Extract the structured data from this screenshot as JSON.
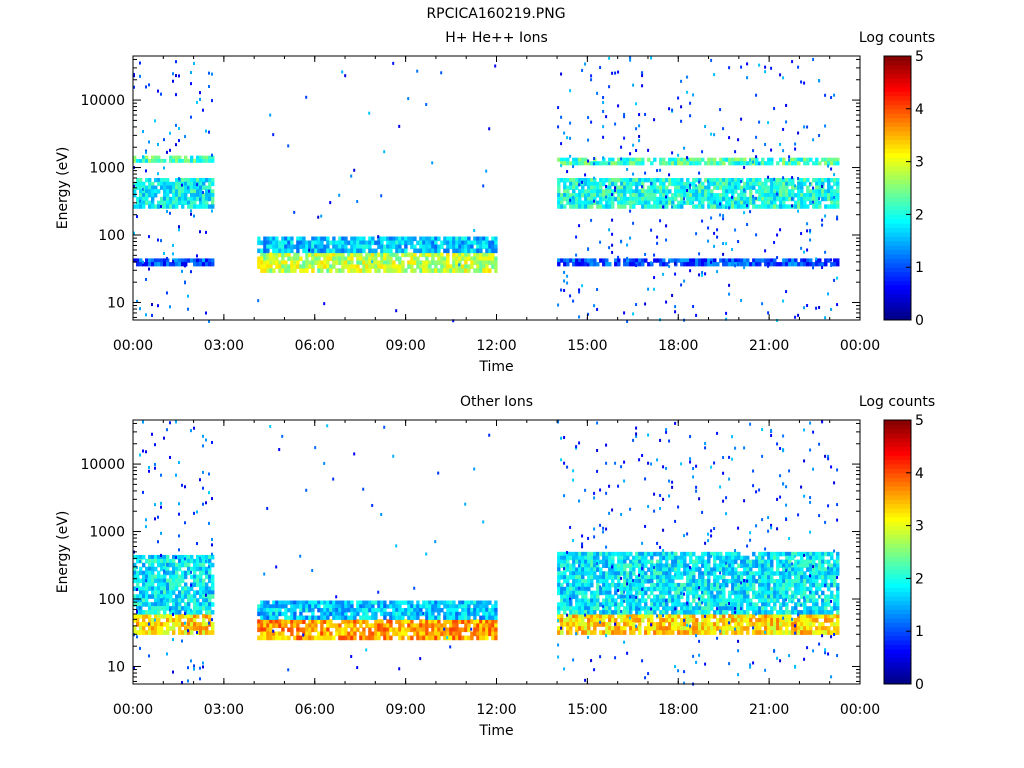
{
  "page_title": "RPCICA160219.PNG",
  "colorbar_ticks": [
    "0",
    "1",
    "2",
    "3",
    "4",
    "5"
  ],
  "chart_data": [
    {
      "type": "heatmap",
      "title": "H+ He++ Ions",
      "xlabel": "Time",
      "ylabel": "Energy (eV)",
      "colorbar_label": "Log counts",
      "xlim": [
        "00:00",
        "00:00"
      ],
      "x_ticks": [
        "00:00",
        "03:00",
        "06:00",
        "09:00",
        "12:00",
        "15:00",
        "18:00",
        "21:00",
        "00:00"
      ],
      "ylim": [
        5.5,
        45000
      ],
      "y_scale": "log",
      "y_ticks": [
        "10",
        "100",
        "1000",
        "10000"
      ],
      "y_tick_values": [
        10,
        100,
        1000,
        10000
      ],
      "zlim": [
        0,
        5
      ],
      "data_intervals_hours": [
        [
          0.0,
          2.6
        ],
        [
          4.1,
          11.95
        ],
        [
          14.0,
          23.3
        ]
      ],
      "bands": [
        {
          "interval": 0,
          "energy_ev": [
            35,
            45
          ],
          "log_counts": 1.0
        },
        {
          "interval": 0,
          "energy_ev": [
            250,
            700
          ],
          "log_counts": 1.9
        },
        {
          "interval": 0,
          "energy_ev": [
            1200,
            1500
          ],
          "log_counts": 2.2
        },
        {
          "interval": 1,
          "energy_ev": [
            28,
            55
          ],
          "log_counts": 2.8
        },
        {
          "interval": 1,
          "energy_ev": [
            55,
            95
          ],
          "log_counts": 1.6
        },
        {
          "interval": 2,
          "energy_ev": [
            35,
            45
          ],
          "log_counts": 1.0
        },
        {
          "interval": 2,
          "energy_ev": [
            250,
            700
          ],
          "log_counts": 2.0
        },
        {
          "interval": 2,
          "energy_ev": [
            1100,
            1400
          ],
          "log_counts": 2.2
        }
      ]
    },
    {
      "type": "heatmap",
      "title": "Other Ions",
      "xlabel": "Time",
      "ylabel": "Energy (eV)",
      "colorbar_label": "Log counts",
      "xlim": [
        "00:00",
        "00:00"
      ],
      "x_ticks": [
        "00:00",
        "03:00",
        "06:00",
        "09:00",
        "12:00",
        "15:00",
        "18:00",
        "21:00",
        "00:00"
      ],
      "ylim": [
        5.5,
        45000
      ],
      "y_scale": "log",
      "y_ticks": [
        "10",
        "100",
        "1000",
        "10000"
      ],
      "y_tick_values": [
        10,
        100,
        1000,
        10000
      ],
      "zlim": [
        0,
        5
      ],
      "data_intervals_hours": [
        [
          0.0,
          2.6
        ],
        [
          4.1,
          11.95
        ],
        [
          14.0,
          23.3
        ]
      ],
      "bands": [
        {
          "interval": 0,
          "energy_ev": [
            30,
            60
          ],
          "log_counts": 3.3
        },
        {
          "interval": 0,
          "energy_ev": [
            60,
            450
          ],
          "log_counts": 1.8
        },
        {
          "interval": 1,
          "energy_ev": [
            25,
            50
          ],
          "log_counts": 3.6
        },
        {
          "interval": 1,
          "energy_ev": [
            50,
            95
          ],
          "log_counts": 1.6
        },
        {
          "interval": 2,
          "energy_ev": [
            30,
            60
          ],
          "log_counts": 3.3
        },
        {
          "interval": 2,
          "energy_ev": [
            60,
            500
          ],
          "log_counts": 1.8
        }
      ]
    }
  ]
}
